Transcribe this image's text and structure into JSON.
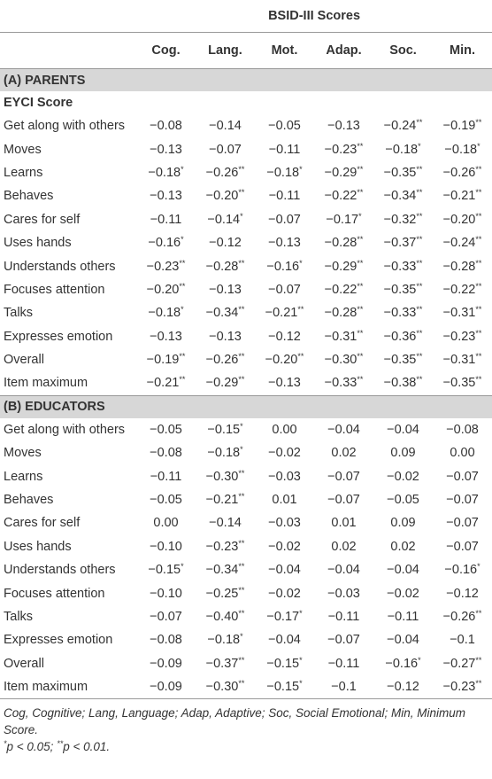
{
  "table": {
    "title": "BSID-III Scores",
    "columns": [
      "Cog.",
      "Lang.",
      "Mot.",
      "Adap.",
      "Soc.",
      "Min."
    ],
    "sections": [
      {
        "label": "(A) PARENTS",
        "subheading": "EYCI Score",
        "rows": [
          {
            "label": "Get along with others",
            "cells": [
              "−0.08",
              "−0.14",
              "−0.05",
              "−0.13",
              "−0.24**",
              "−0.19**"
            ]
          },
          {
            "label": "Moves",
            "cells": [
              "−0.13",
              "−0.07",
              "−0.11",
              "−0.23**",
              "−0.18*",
              "−0.18*"
            ]
          },
          {
            "label": "Learns",
            "cells": [
              "−0.18*",
              "−0.26**",
              "−0.18*",
              "−0.29**",
              "−0.35**",
              "−0.26**"
            ]
          },
          {
            "label": "Behaves",
            "cells": [
              "−0.13",
              "−0.20**",
              "−0.11",
              "−0.22**",
              "−0.34**",
              "−0.21**"
            ]
          },
          {
            "label": "Cares for self",
            "cells": [
              "−0.11",
              "−0.14*",
              "−0.07",
              "−0.17*",
              "−0.32**",
              "−0.20**"
            ]
          },
          {
            "label": "Uses hands",
            "cells": [
              "−0.16*",
              "−0.12",
              "−0.13",
              "−0.28**",
              "−0.37**",
              "−0.24**"
            ]
          },
          {
            "label": "Understands others",
            "cells": [
              "−0.23**",
              "−0.28**",
              "−0.16*",
              "−0.29**",
              "−0.33**",
              "−0.28**"
            ]
          },
          {
            "label": "Focuses attention",
            "cells": [
              "−0.20**",
              "−0.13",
              "−0.07",
              "−0.22**",
              "−0.35**",
              "−0.22**"
            ]
          },
          {
            "label": "Talks",
            "cells": [
              "−0.18*",
              "−0.34**",
              "−0.21**",
              "−0.28**",
              "−0.33**",
              "−0.31**"
            ]
          },
          {
            "label": "Expresses emotion",
            "cells": [
              "−0.13",
              "−0.13",
              "−0.12",
              "−0.31**",
              "−0.36**",
              "−0.23**"
            ]
          },
          {
            "label": "Overall",
            "cells": [
              "−0.19**",
              "−0.26**",
              "−0.20**",
              "−0.30**",
              "−0.35**",
              "−0.31**"
            ]
          },
          {
            "label": "Item maximum",
            "cells": [
              "−0.21**",
              "−0.29**",
              "−0.13",
              "−0.33**",
              "−0.38**",
              "−0.35**"
            ]
          }
        ]
      },
      {
        "label": "(B) EDUCATORS",
        "rows": [
          {
            "label": "Get along with others",
            "cells": [
              "−0.05",
              "−0.15*",
              "0.00",
              "−0.04",
              "−0.04",
              "−0.08"
            ]
          },
          {
            "label": "Moves",
            "cells": [
              "−0.08",
              "−0.18*",
              "−0.02",
              "0.02",
              "0.09",
              "0.00"
            ]
          },
          {
            "label": "Learns",
            "cells": [
              "−0.11",
              "−0.30**",
              "−0.03",
              "−0.07",
              "−0.02",
              "−0.07"
            ]
          },
          {
            "label": "Behaves",
            "cells": [
              "−0.05",
              "−0.21**",
              "0.01",
              "−0.07",
              "−0.05",
              "−0.07"
            ]
          },
          {
            "label": "Cares for self",
            "cells": [
              "0.00",
              "−0.14",
              "−0.03",
              "0.01",
              "0.09",
              "−0.07"
            ]
          },
          {
            "label": "Uses hands",
            "cells": [
              "−0.10",
              "−0.23**",
              "−0.02",
              "0.02",
              "0.02",
              "−0.07"
            ]
          },
          {
            "label": "Understands others",
            "cells": [
              "−0.15*",
              "−0.34**",
              "−0.04",
              "−0.04",
              "−0.04",
              "−0.16*"
            ]
          },
          {
            "label": "Focuses attention",
            "cells": [
              "−0.10",
              "−0.25**",
              "−0.02",
              "−0.03",
              "−0.02",
              "−0.12"
            ]
          },
          {
            "label": "Talks",
            "cells": [
              "−0.07",
              "−0.40**",
              "−0.17*",
              "−0.11",
              "−0.11",
              "−0.26**"
            ]
          },
          {
            "label": "Expresses emotion",
            "cells": [
              "−0.08",
              "−0.18*",
              "−0.04",
              "−0.07",
              "−0.04",
              "−0.1"
            ]
          },
          {
            "label": "Overall",
            "cells": [
              "−0.09",
              "−0.37**",
              "−0.15*",
              "−0.11",
              "−0.16*",
              "−0.27**"
            ]
          },
          {
            "label": "Item maximum",
            "cells": [
              "−0.09",
              "−0.30**",
              "−0.15*",
              "−0.1",
              "−0.12",
              "−0.23**"
            ]
          }
        ]
      }
    ]
  },
  "footnotes": [
    "Cog, Cognitive; Lang, Language; Adap, Adaptive; Soc, Social Emotional; Min, Minimum Score.",
    "*p < 0.05; **p < 0.01."
  ]
}
